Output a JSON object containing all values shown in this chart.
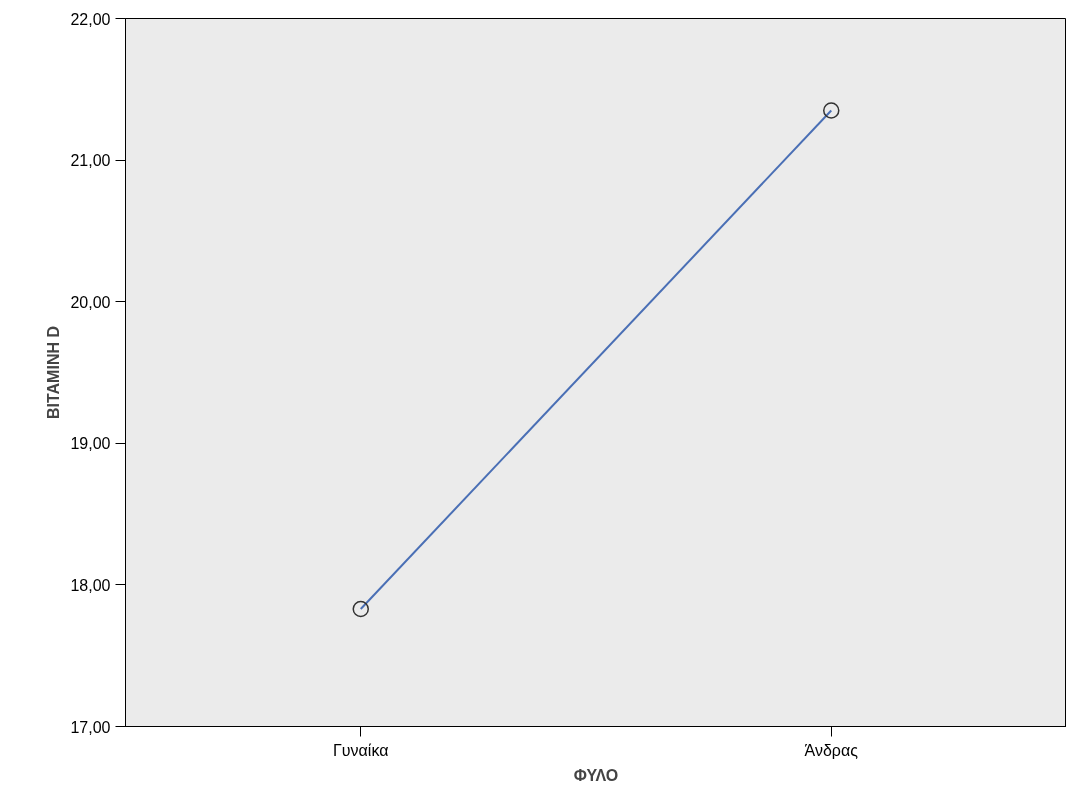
{
  "chart_data": {
    "type": "line",
    "xlabel": "ΦΥΛΟ",
    "ylabel": "ΒΙΤΑΜΙΝΗ D",
    "categories": [
      "Γυναίκα",
      "Άνδρας"
    ],
    "series": [
      {
        "color": "#4a6fb5",
        "values": [
          17.83,
          21.35
        ]
      }
    ],
    "ylim": [
      17,
      22
    ],
    "yticks": [
      {
        "value": 17,
        "label": "17,00"
      },
      {
        "value": 18,
        "label": "18,00"
      },
      {
        "value": 19,
        "label": "19,00"
      },
      {
        "value": 20,
        "label": "20,00"
      },
      {
        "value": 21,
        "label": "21,00"
      },
      {
        "value": 22,
        "label": "22,00"
      }
    ],
    "grid": false,
    "marker": "circle",
    "line_style": "solid"
  }
}
